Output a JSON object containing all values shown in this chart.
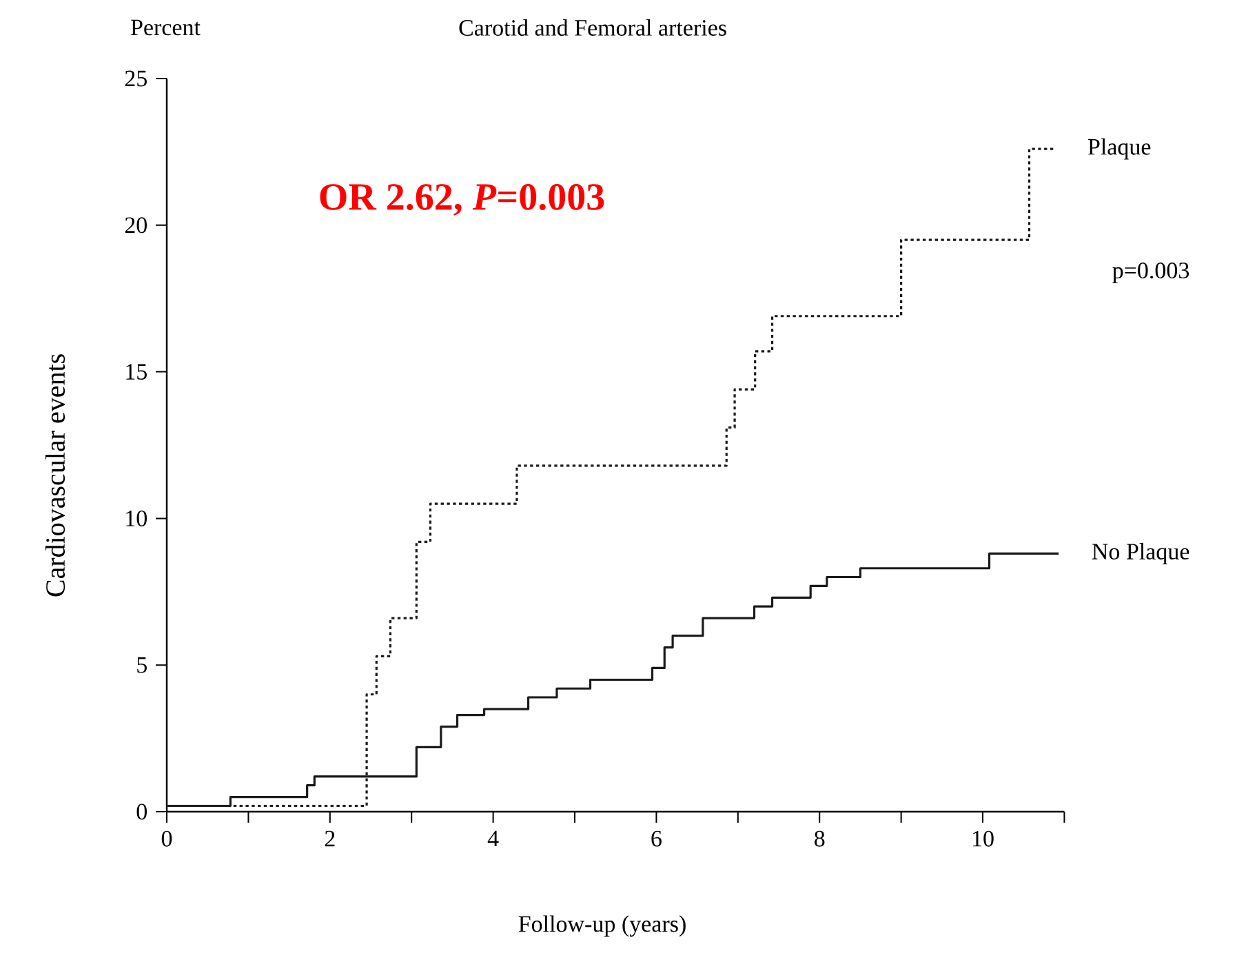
{
  "chart_data": {
    "type": "step",
    "title": "Carotid and Femoral arteries",
    "xlabel": "Follow-up (years)",
    "ylabel": "Cardiovascular events",
    "annotations": [
      "Percent",
      "OR 2.62, *P*=0.003",
      "p=0.003"
    ],
    "series": [
      {
        "name": "Plaque",
        "color": "#1a1a1a",
        "line_style": "dotted",
        "x": [
          0,
          2.45,
          2.57,
          2.74,
          3.06,
          3.23,
          4.29,
          6.86,
          6.96,
          7.21,
          7.42,
          9.0,
          10.57,
          10.88
        ],
        "values": [
          0.2,
          4.0,
          5.3,
          6.6,
          9.2,
          10.5,
          11.8,
          13.1,
          14.4,
          15.7,
          16.9,
          19.5,
          22.6,
          22.6
        ]
      },
      {
        "name": "No Plaque",
        "color": "#1a1a1a",
        "line_style": "solid",
        "x": [
          0,
          0.78,
          1.72,
          1.81,
          3.06,
          3.36,
          3.56,
          3.89,
          4.43,
          4.78,
          5.19,
          5.95,
          6.1,
          6.2,
          6.57,
          7.2,
          7.42,
          7.89,
          8.09,
          8.5,
          10.08,
          10.93
        ],
        "values": [
          0.2,
          0.5,
          0.9,
          1.2,
          2.2,
          2.9,
          3.3,
          3.5,
          3.9,
          4.2,
          4.5,
          4.9,
          5.6,
          6.0,
          6.6,
          7.0,
          7.3,
          7.7,
          8.0,
          8.3,
          8.8,
          8.8
        ]
      }
    ],
    "xlim": [
      0,
      11
    ],
    "ylim": [
      0,
      25
    ],
    "xticks": [
      0,
      {
        "value": 1,
        "label": null
      },
      2,
      {
        "value": 3,
        "label": null
      },
      4,
      {
        "value": 5,
        "label": null
      },
      6,
      {
        "value": 7,
        "label": null
      },
      8,
      {
        "value": 9,
        "label": null
      },
      10,
      {
        "value": 11,
        "label": null
      }
    ],
    "yticks": [
      0,
      5,
      10,
      15,
      20,
      25
    ]
  }
}
